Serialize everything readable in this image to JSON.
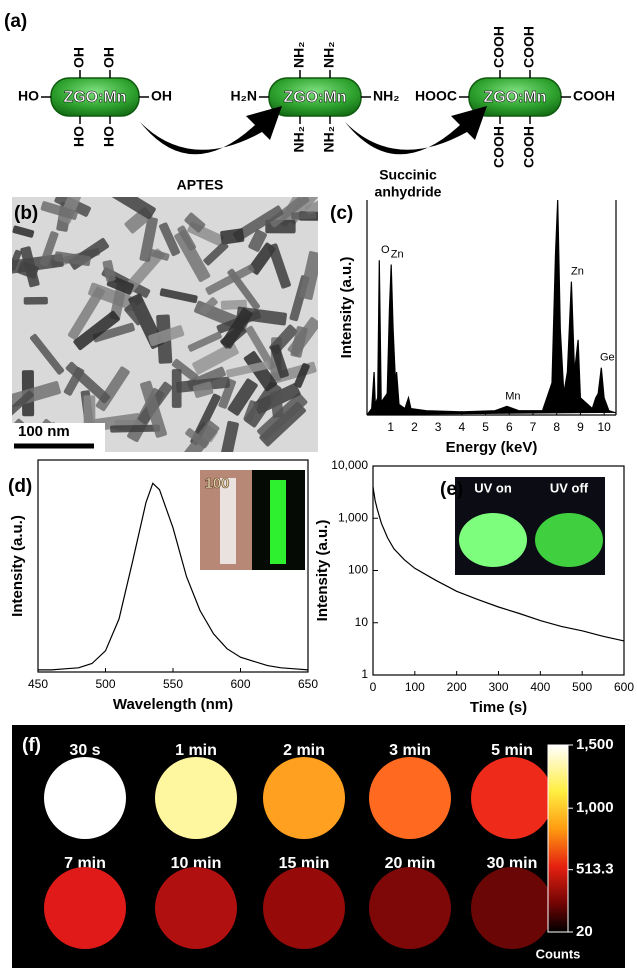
{
  "figure_labels": [
    "(a)",
    "(b)",
    "(c)",
    "(d)",
    "(e)",
    "(f)"
  ],
  "scheme": {
    "core_label": "ZGO:Mn",
    "molecules": [
      {
        "top": [
          "OH",
          "OH"
        ],
        "bottom": [
          "HO",
          "HO"
        ],
        "left": "HO",
        "right": "OH"
      },
      {
        "top": [
          "NH₂",
          "NH₂"
        ],
        "bottom": [
          "NH₂",
          "NH₂"
        ],
        "left": "H₂N",
        "right": "NH₂"
      },
      {
        "top": [
          "COOH",
          "COOH"
        ],
        "bottom": [
          "COOH",
          "COOH"
        ],
        "left": "HOOC",
        "right": "COOH"
      }
    ],
    "reagents": [
      [
        "APTES"
      ],
      [
        "Succinic",
        "anhydride"
      ]
    ]
  },
  "tem": {
    "scale_bar": "100 nm"
  },
  "chart_data": [
    {
      "type": "area",
      "x_label": "Energy (keV)",
      "y_label": "Intensity (a.u.)",
      "color": "#000000",
      "xlim": [
        0,
        10.5
      ],
      "xticks": [
        1,
        2,
        3,
        4,
        5,
        6,
        7,
        8,
        9,
        10
      ],
      "ylim": [
        0,
        100
      ],
      "x": [
        0,
        0.2,
        0.3,
        0.35,
        0.45,
        0.52,
        0.6,
        0.85,
        0.95,
        1.02,
        1.1,
        1.2,
        1.25,
        1.35,
        1.6,
        1.75,
        1.85,
        2.5,
        4,
        5.4,
        5.9,
        6.4,
        7.4,
        7.8,
        7.95,
        8.04,
        8.15,
        8.3,
        8.45,
        8.62,
        8.75,
        8.9,
        9.0,
        9.5,
        9.65,
        9.75,
        9.88,
        10.0,
        10.2,
        10.5
      ],
      "values": [
        0,
        3,
        20,
        5,
        8,
        72,
        6,
        10,
        50,
        70,
        40,
        15,
        20,
        5,
        3,
        8,
        3,
        2,
        1.5,
        2,
        4,
        2,
        2,
        15,
        75,
        100,
        40,
        10,
        20,
        62,
        20,
        35,
        8,
        3,
        8,
        10,
        22,
        8,
        2,
        1
      ],
      "peak_labels": [
        {
          "label": "O",
          "x": 0.52
        },
        {
          "label": "Zn",
          "x": 1.02
        },
        {
          "label": "Mn",
          "x": 5.9
        },
        {
          "label": "Zn",
          "x": 8.62
        },
        {
          "label": "Ge",
          "x": 9.88
        }
      ]
    },
    {
      "type": "line",
      "x_label": "Wavelength (nm)",
      "y_label": "Intensity (a.u.)",
      "color": "#000000",
      "xlim": [
        450,
        650
      ],
      "xticks": [
        450,
        500,
        550,
        600,
        650
      ],
      "ylim": [
        0,
        100
      ],
      "inset_text": "100",
      "x": [
        450,
        460,
        470,
        480,
        490,
        500,
        510,
        520,
        530,
        535,
        540,
        550,
        560,
        570,
        580,
        590,
        600,
        610,
        620,
        630,
        640,
        650
      ],
      "values": [
        1,
        1,
        1.5,
        2,
        4,
        10,
        25,
        52,
        80,
        89,
        86,
        68,
        45,
        29,
        18,
        11,
        7,
        5,
        3,
        2,
        1.5,
        1
      ]
    },
    {
      "type": "line",
      "x_label": "Time (s)",
      "y_label": "Intensity (a.u.)",
      "color": "#000000",
      "log_scale": true,
      "xlim": [
        0,
        600
      ],
      "xticks": [
        0,
        100,
        200,
        300,
        400,
        500,
        600
      ],
      "ylim": [
        1,
        10000
      ],
      "yticks": [
        1,
        10,
        100,
        {
          "value": 1000,
          "label": "1,000"
        },
        {
          "value": 10000,
          "label": "10,000"
        }
      ],
      "inset_labels": [
        "UV on",
        "UV off"
      ],
      "x": [
        0,
        5,
        10,
        20,
        35,
        50,
        75,
        100,
        150,
        200,
        250,
        300,
        350,
        400,
        450,
        500,
        550,
        600
      ],
      "values": [
        4000,
        2200,
        1500,
        800,
        420,
        260,
        160,
        110,
        65,
        40,
        28,
        20,
        15,
        11,
        8.5,
        7,
        5.5,
        4.5
      ]
    }
  ],
  "panel_f": {
    "time_labels": [
      "30 s",
      "1 min",
      "2 min",
      "3 min",
      "5 min",
      "7 min",
      "10 min",
      "15 min",
      "20 min",
      "30 min"
    ],
    "colors": [
      "#ffffff",
      "#fff7a0",
      "#ffa020",
      "#ff6a20",
      "#ee2a1a",
      "#e01a18",
      "#b01010",
      "#960a0a",
      "#7e0808",
      "#6a0606"
    ],
    "colorbar": {
      "lim": [
        20,
        1500
      ],
      "ticks": [
        {
          "value": 1500,
          "label": "1,500"
        },
        {
          "value": 1000,
          "label": "1,000"
        },
        513.3,
        20
      ],
      "label": "Counts"
    }
  }
}
